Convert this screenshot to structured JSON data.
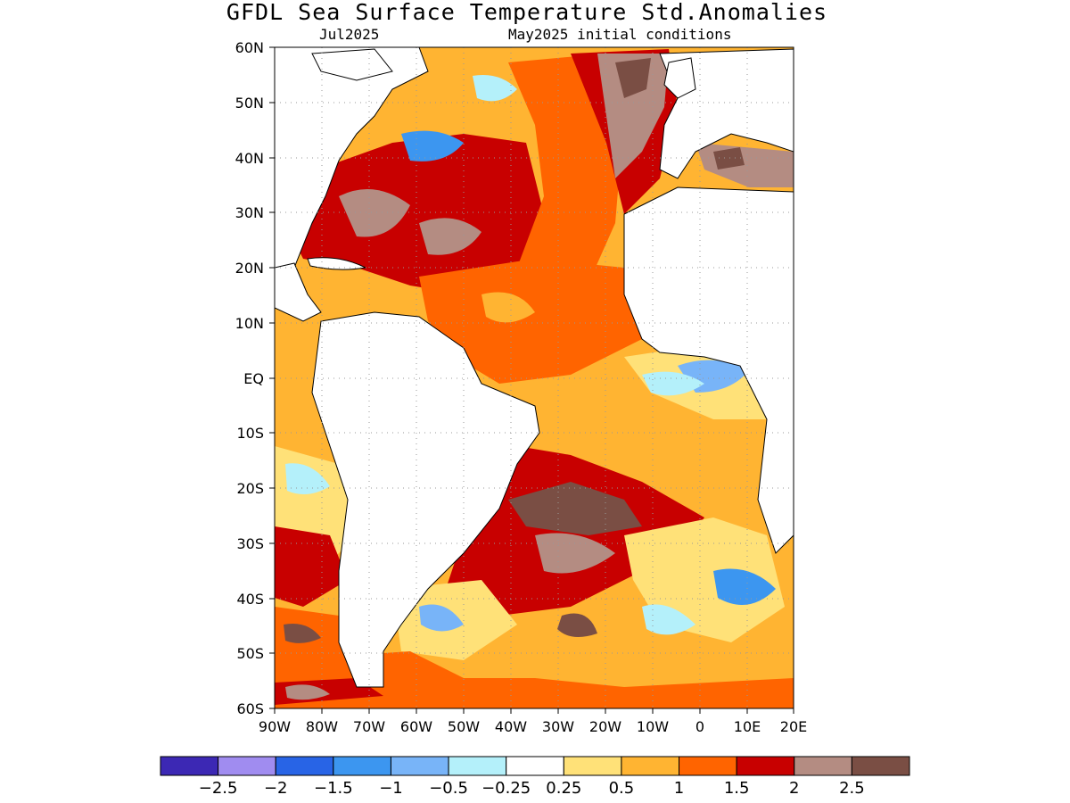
{
  "title": "GFDL Sea Surface Temperature Std.Anomalies",
  "subtitle_left": "Jul2025",
  "subtitle_right": "May2025 initial conditions",
  "map": {
    "lat_labels": [
      "60N",
      "50N",
      "40N",
      "30N",
      "20N",
      "10N",
      "EQ",
      "10S",
      "20S",
      "30S",
      "40S",
      "50S",
      "60S"
    ],
    "lon_labels": [
      "90W",
      "80W",
      "70W",
      "60W",
      "50W",
      "40W",
      "30W",
      "20W",
      "10W",
      "0",
      "10E",
      "20E"
    ],
    "lat_range": [
      -60,
      60
    ],
    "lon_range": [
      -90,
      20
    ],
    "grid": "dotted"
  },
  "colorbar": {
    "colors": [
      "#3c28b4",
      "#a08cf0",
      "#2864e6",
      "#3c96f0",
      "#78b4f8",
      "#b4f0fa",
      "#ffffff",
      "#ffe178",
      "#ffb432",
      "#ff6400",
      "#c80000",
      "#b48c82",
      "#7a4e44"
    ],
    "labels": [
      "−2.5",
      "−2",
      "−1.5",
      "−1",
      "−0.5",
      "−0.25",
      "0.25",
      "0.5",
      "1",
      "1.5",
      "2",
      "2.5"
    ]
  }
}
